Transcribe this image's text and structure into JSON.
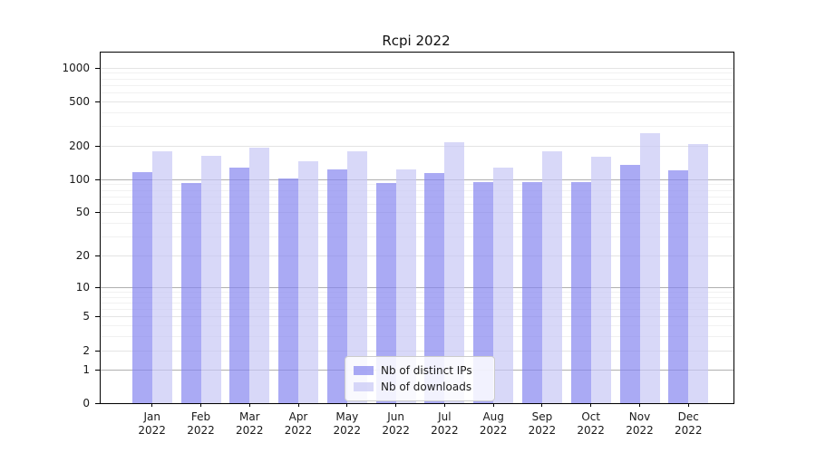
{
  "chart_data": {
    "type": "bar",
    "title": "Rcpi 2022",
    "categories": [
      "Jan 2022",
      "Feb 2022",
      "Mar 2022",
      "Apr 2022",
      "May 2022",
      "Jun 2022",
      "Jul 2022",
      "Aug 2022",
      "Sep 2022",
      "Oct 2022",
      "Nov 2022",
      "Dec 2022"
    ],
    "series": [
      {
        "name": "Nb of distinct IPs",
        "color": "rgba(134,134,240,0.7)",
        "values": [
          116,
          92,
          128,
          102,
          123,
          93,
          114,
          94,
          94,
          95,
          135,
          121
        ]
      },
      {
        "name": "Nb of downloads",
        "color": "rgba(199,199,245,0.7)",
        "values": [
          180,
          161,
          194,
          144,
          178,
          122,
          215,
          128,
          178,
          160,
          259,
          207
        ]
      }
    ],
    "xlabel": "",
    "ylabel": "",
    "yscale": "log1p",
    "ylim": [
      0,
      1350
    ],
    "yticks": [
      0,
      1,
      2,
      5,
      10,
      20,
      50,
      100,
      200,
      500,
      1000
    ],
    "emphasized_yticks": [
      1,
      10,
      100
    ],
    "minor_yticks": [
      3,
      4,
      6,
      7,
      8,
      9,
      30,
      40,
      60,
      70,
      80,
      90,
      300,
      400,
      600,
      700,
      800,
      900
    ],
    "grid": true,
    "legend": {
      "position": "lower-center-inside",
      "labels": [
        "Nb of distinct IPs",
        "Nb of downloads"
      ]
    }
  }
}
